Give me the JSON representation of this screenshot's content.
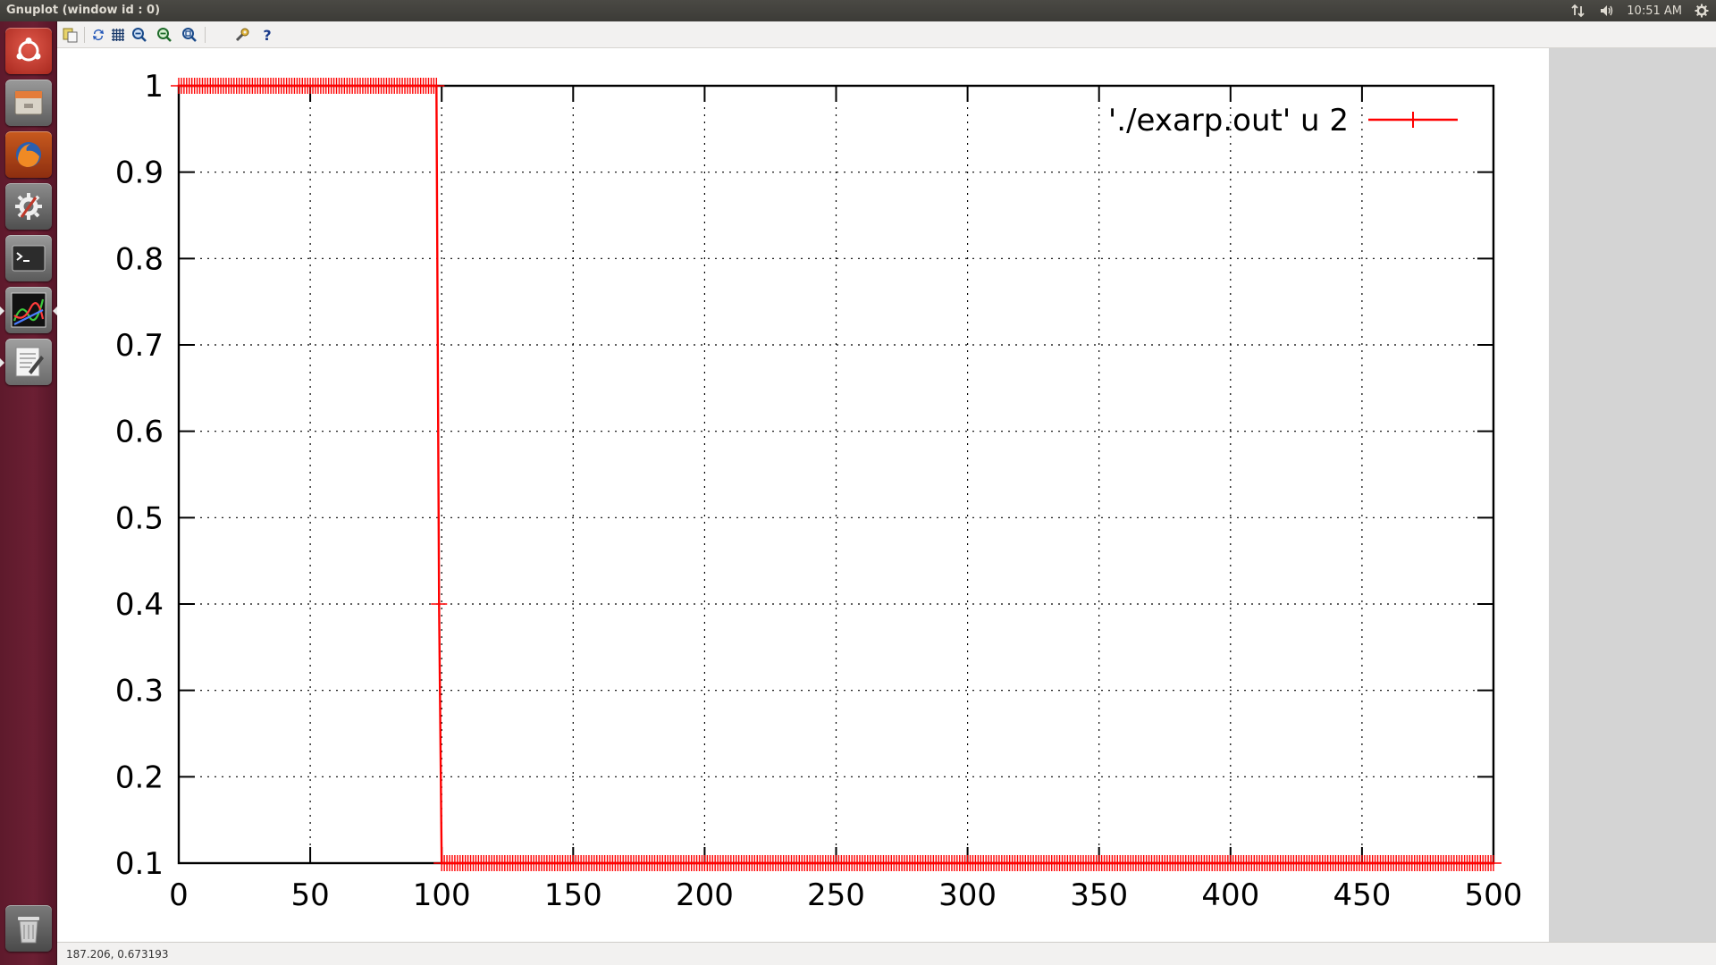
{
  "window": {
    "title": "Gnuplot (window id : 0)"
  },
  "panel": {
    "clock": "10:51 AM",
    "icons": [
      "network-arrows-icon",
      "volume-icon",
      "settings-gear-icon"
    ]
  },
  "launcher": {
    "items": [
      {
        "name": "ubuntu-dash-icon"
      },
      {
        "name": "files-icon"
      },
      {
        "name": "firefox-icon"
      },
      {
        "name": "system-settings-icon"
      },
      {
        "name": "terminal-icon"
      },
      {
        "name": "gnuplot-icon"
      },
      {
        "name": "text-editor-icon"
      },
      {
        "name": "trash-icon"
      }
    ]
  },
  "toolbar": {
    "buttons": [
      "copy-clipboard-icon",
      "replot-icon",
      "grid-icon",
      "zoom-previous-icon",
      "zoom-next-icon",
      "autoscale-icon",
      "options-icon",
      "help-icon"
    ]
  },
  "status": {
    "coordinates": "187.206,  0.673193"
  },
  "colors": {
    "series": "#ff0000",
    "launcher": "#5e1a2c",
    "panel": "#3c3b37"
  },
  "chart_data": {
    "type": "line",
    "title": "",
    "xlabel": "",
    "ylabel": "",
    "xlim": [
      0,
      500
    ],
    "ylim": [
      0.1,
      1
    ],
    "xticks": [
      "0",
      "50",
      "100",
      "150",
      "200",
      "250",
      "300",
      "350",
      "400",
      "450",
      "500"
    ],
    "yticks": [
      "0.1",
      "0.2",
      "0.3",
      "0.4",
      "0.5",
      "0.6",
      "0.7",
      "0.8",
      "0.9",
      "1"
    ],
    "grid": true,
    "legend_position": "top-right",
    "series": [
      {
        "name": "'./exarp.out' u 2",
        "color": "#ff0000",
        "marker": "plus",
        "segments": [
          {
            "x_start": 0,
            "x_end": 98,
            "y": 1
          },
          {
            "x_start": 99,
            "x_end": 99,
            "y": 0.4
          },
          {
            "x_start": 100,
            "x_end": 500,
            "y": 0.1
          }
        ]
      }
    ]
  }
}
